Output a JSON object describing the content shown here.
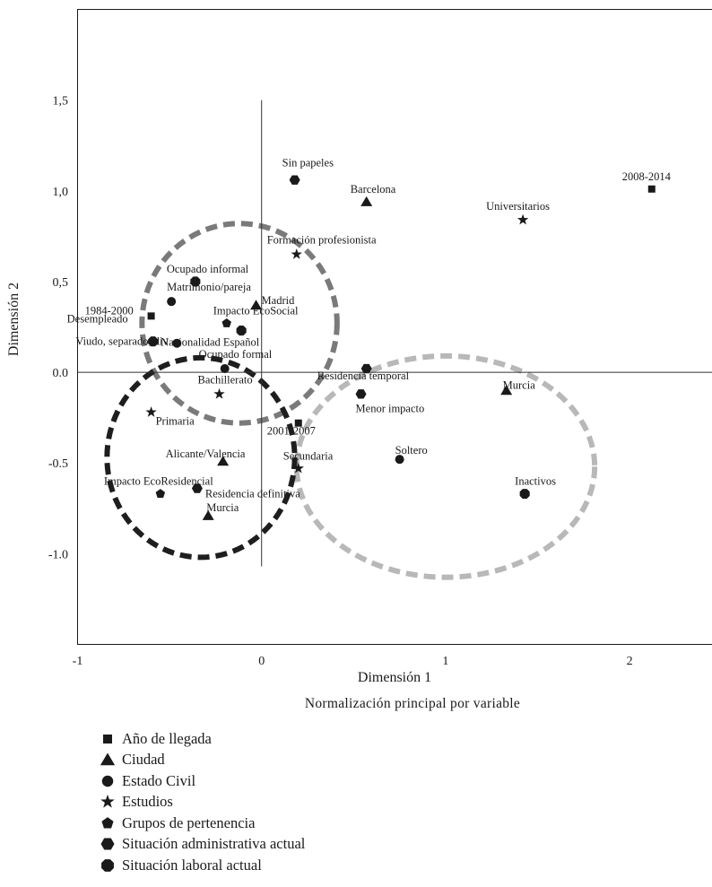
{
  "chart_data": {
    "type": "scatter",
    "xlabel": "Dimensión 1",
    "ylabel": "Dimensión 2",
    "subtitle": "Normalización principal por variable",
    "xlim": [
      -1,
      2.45
    ],
    "ylim": [
      -1.5,
      2.0
    ],
    "xticks": [
      {
        "v": -1,
        "label": "-1"
      },
      {
        "v": 0,
        "label": "0"
      },
      {
        "v": 1,
        "label": "1"
      },
      {
        "v": 2,
        "label": "2"
      }
    ],
    "yticks": [
      {
        "v": 1.5,
        "label": "1,5"
      },
      {
        "v": 1.0,
        "label": "1,0"
      },
      {
        "v": 0.5,
        "label": "0,5"
      },
      {
        "v": 0.0,
        "label": "0.0"
      },
      {
        "v": -0.5,
        "label": "-0.5"
      },
      {
        "v": -1.0,
        "label": "-1.0"
      }
    ],
    "reference_lines": {
      "vertical_x": 0,
      "vertical_y_range": [
        -1.07,
        1.5
      ],
      "horizontal_y": 0
    },
    "groups": [
      {
        "name": "Año de llegada",
        "marker": "square",
        "points": [
          {
            "label": "2008-2014",
            "x": 2.12,
            "y": 1.01
          },
          {
            "label": "1984-2000",
            "x": -0.6,
            "y": 0.31
          },
          {
            "label": "2001-2007",
            "x": 0.2,
            "y": -0.28
          }
        ]
      },
      {
        "name": "Ciudad",
        "marker": "triangle",
        "points": [
          {
            "label": "Barcelona",
            "x": 0.57,
            "y": 0.94
          },
          {
            "label": "Madrid",
            "x": -0.03,
            "y": 0.37
          },
          {
            "label": "Murcia",
            "x": 1.33,
            "y": -0.1
          },
          {
            "label": "Alicante/Valencia",
            "x": -0.21,
            "y": -0.49
          },
          {
            "label": "Murcia",
            "x": -0.29,
            "y": -0.79
          }
        ]
      },
      {
        "name": "Estado Civil",
        "marker": "circle",
        "points": [
          {
            "label": "Matrimonio/pareja",
            "x": -0.49,
            "y": 0.39
          },
          {
            "label": "Viudo, separado, div",
            "x": -0.46,
            "y": 0.16
          },
          {
            "label": "Ocupado formal",
            "x": -0.2,
            "y": 0.02
          },
          {
            "label": "Soltero",
            "x": 0.75,
            "y": -0.48
          }
        ]
      },
      {
        "name": "Estudios",
        "marker": "star",
        "points": [
          {
            "label": "Universitarios",
            "x": 1.42,
            "y": 0.84
          },
          {
            "label": "Formación profesionista",
            "x": 0.19,
            "y": 0.65
          },
          {
            "label": "Bachillerato",
            "x": -0.23,
            "y": -0.12
          },
          {
            "label": "Primaria",
            "x": -0.6,
            "y": -0.22
          },
          {
            "label": "Secundaria",
            "x": 0.2,
            "y": -0.53
          }
        ]
      },
      {
        "name": "Grupos de pertenencia",
        "marker": "pentagon",
        "points": [
          {
            "label": "Impacto EcoSocial",
            "x": -0.19,
            "y": 0.27
          },
          {
            "label": "Impacto EcoResidencial",
            "x": -0.55,
            "y": -0.67
          }
        ]
      },
      {
        "name": "Situación administrativa actual",
        "marker": "hexagon",
        "points": [
          {
            "label": "Sin papeles",
            "x": 0.18,
            "y": 1.06
          },
          {
            "label": "Residencia temporal",
            "x": 0.57,
            "y": 0.02
          },
          {
            "label": "Menor impacto",
            "x": 0.54,
            "y": -0.12
          },
          {
            "label": "Residencia definitiva",
            "x": -0.35,
            "y": -0.64
          }
        ]
      },
      {
        "name": "Situación laboral actual",
        "marker": "octagon",
        "points": [
          {
            "label": "Ocupado informal",
            "x": -0.36,
            "y": 0.5
          },
          {
            "label": "Desempleado",
            "x": -0.59,
            "y": 0.17
          },
          {
            "label": "Nacionalidad Español",
            "x": -0.11,
            "y": 0.23
          },
          {
            "label": "Inactivos",
            "x": 1.43,
            "y": -0.67
          }
        ]
      }
    ],
    "ellipses": [
      {
        "cx": -0.12,
        "cy": 0.27,
        "rx": 0.53,
        "ry": 0.55,
        "color": "#7a7a7a"
      },
      {
        "cx": 1.0,
        "cy": -0.52,
        "rx": 0.81,
        "ry": 0.61,
        "color": "#b8b8b8"
      },
      {
        "cx": -0.33,
        "cy": -0.47,
        "rx": 0.51,
        "ry": 0.55,
        "color": "#1e1e1e"
      }
    ]
  }
}
